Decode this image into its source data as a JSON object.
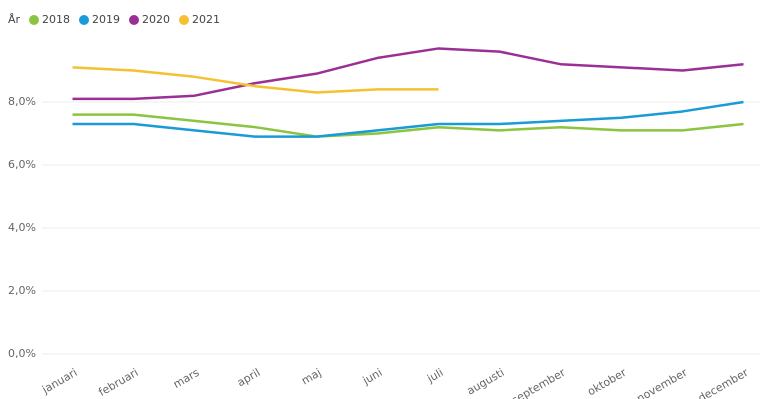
{
  "chart_data": {
    "type": "line",
    "legend_title": "År",
    "categories": [
      "januari",
      "februari",
      "mars",
      "april",
      "maj",
      "juni",
      "juli",
      "augusti",
      "september",
      "oktober",
      "november",
      "december"
    ],
    "series": [
      {
        "name": "2018",
        "color": "#8cc43f",
        "values": [
          7.6,
          7.6,
          7.4,
          7.2,
          6.9,
          7.0,
          7.2,
          7.1,
          7.2,
          7.1,
          7.1,
          7.3
        ]
      },
      {
        "name": "2019",
        "color": "#1a9ad6",
        "values": [
          7.3,
          7.3,
          7.1,
          6.9,
          6.9,
          7.1,
          7.3,
          7.3,
          7.4,
          7.5,
          7.7,
          8.0
        ]
      },
      {
        "name": "2020",
        "color": "#9b2f96",
        "values": [
          8.1,
          8.1,
          8.2,
          8.6,
          8.9,
          9.4,
          9.7,
          9.6,
          9.2,
          9.1,
          9.0,
          9.2
        ]
      },
      {
        "name": "2021",
        "color": "#f5c133",
        "values": [
          9.1,
          9.0,
          8.8,
          8.5,
          8.3,
          8.4,
          8.4,
          null,
          null,
          null,
          null,
          null
        ]
      }
    ],
    "ylim": [
      0,
      10
    ],
    "yticks": [
      {
        "value": 0,
        "label": "0,0%"
      },
      {
        "value": 2,
        "label": "2,0%"
      },
      {
        "value": 4,
        "label": "4,0%"
      },
      {
        "value": 6,
        "label": "6,0%"
      },
      {
        "value": 8,
        "label": "8,0%"
      }
    ],
    "grid": true
  }
}
